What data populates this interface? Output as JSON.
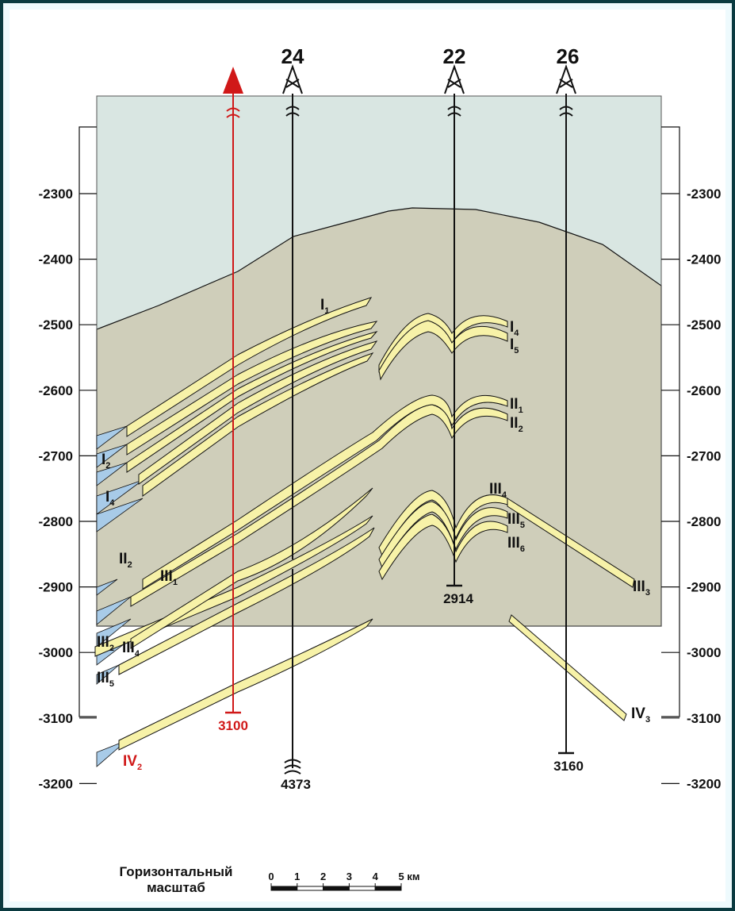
{
  "depth_ticks": [
    "-2300",
    "-2400",
    "-2500",
    "-2600",
    "-2700",
    "-2800",
    "-2900",
    "-3000",
    "-3100",
    "-3200"
  ],
  "wells": [
    {
      "id": "well_24",
      "label": "24",
      "bottom": "4373"
    },
    {
      "id": "well_22",
      "label": "22",
      "bottom": "2914"
    },
    {
      "id": "well_26",
      "label": "26",
      "bottom": "3160"
    }
  ],
  "projected_well": {
    "bottom": "3100"
  },
  "layers": {
    "I1": {
      "main": "I",
      "sub": "1"
    },
    "I4r": {
      "main": "I",
      "sub": "4"
    },
    "I5r": {
      "main": "I",
      "sub": "5"
    },
    "I2l": {
      "main": "I",
      "sub": "2"
    },
    "I4l": {
      "main": "I",
      "sub": "4"
    },
    "II1": {
      "main": "II",
      "sub": "1"
    },
    "II2r": {
      "main": "II",
      "sub": "2"
    },
    "II2l": {
      "main": "II",
      "sub": "2"
    },
    "III1": {
      "main": "III",
      "sub": "1"
    },
    "III4r": {
      "main": "III",
      "sub": "4"
    },
    "III5r": {
      "main": "III",
      "sub": "5"
    },
    "III6": {
      "main": "III",
      "sub": "6"
    },
    "III3": {
      "main": "III",
      "sub": "3"
    },
    "III2l": {
      "main": "III",
      "sub": "2"
    },
    "III4l": {
      "main": "III",
      "sub": "4"
    },
    "III5l": {
      "main": "III",
      "sub": "5"
    },
    "IV3": {
      "main": "IV",
      "sub": "3"
    },
    "IV2": {
      "main": "IV",
      "sub": "2"
    }
  },
  "scale": {
    "caption_line1": "Горизонтальный",
    "caption_line2": "масштаб",
    "labels": [
      "0",
      "1",
      "2",
      "3",
      "4",
      "5 км"
    ]
  },
  "colors": {
    "border": "#0a3a40",
    "outer_bg": "#eefafd",
    "water": "#d9e6e2",
    "rock": "#cfceba",
    "sand": "#f7f2a8",
    "oil": "#a8cbe8",
    "red": "#d01818"
  }
}
